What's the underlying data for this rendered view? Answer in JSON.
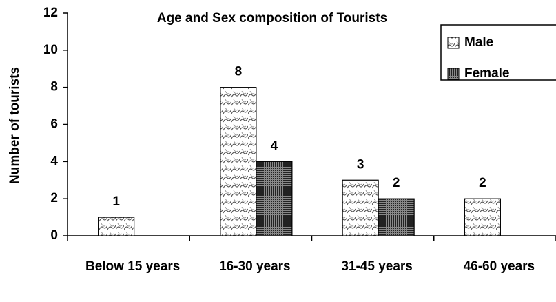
{
  "chart_data": {
    "type": "bar",
    "title": "Age and Sex composition of Tourists",
    "y_label": "Number of tourists",
    "categories": [
      "Below 15 years",
      "16-30 years",
      "31-45 years",
      "46-60 years"
    ],
    "series": [
      {
        "name": "Male",
        "color": "#ffffff",
        "values": [
          1,
          8,
          3,
          2
        ]
      },
      {
        "name": "Female",
        "color": "#3a3a3a",
        "values": [
          null,
          4,
          2,
          null
        ]
      }
    ],
    "ylim": [
      0,
      12
    ],
    "yticks": [
      0,
      2,
      4,
      6,
      8,
      10,
      12
    ],
    "grid": false,
    "legend": "upper right"
  }
}
